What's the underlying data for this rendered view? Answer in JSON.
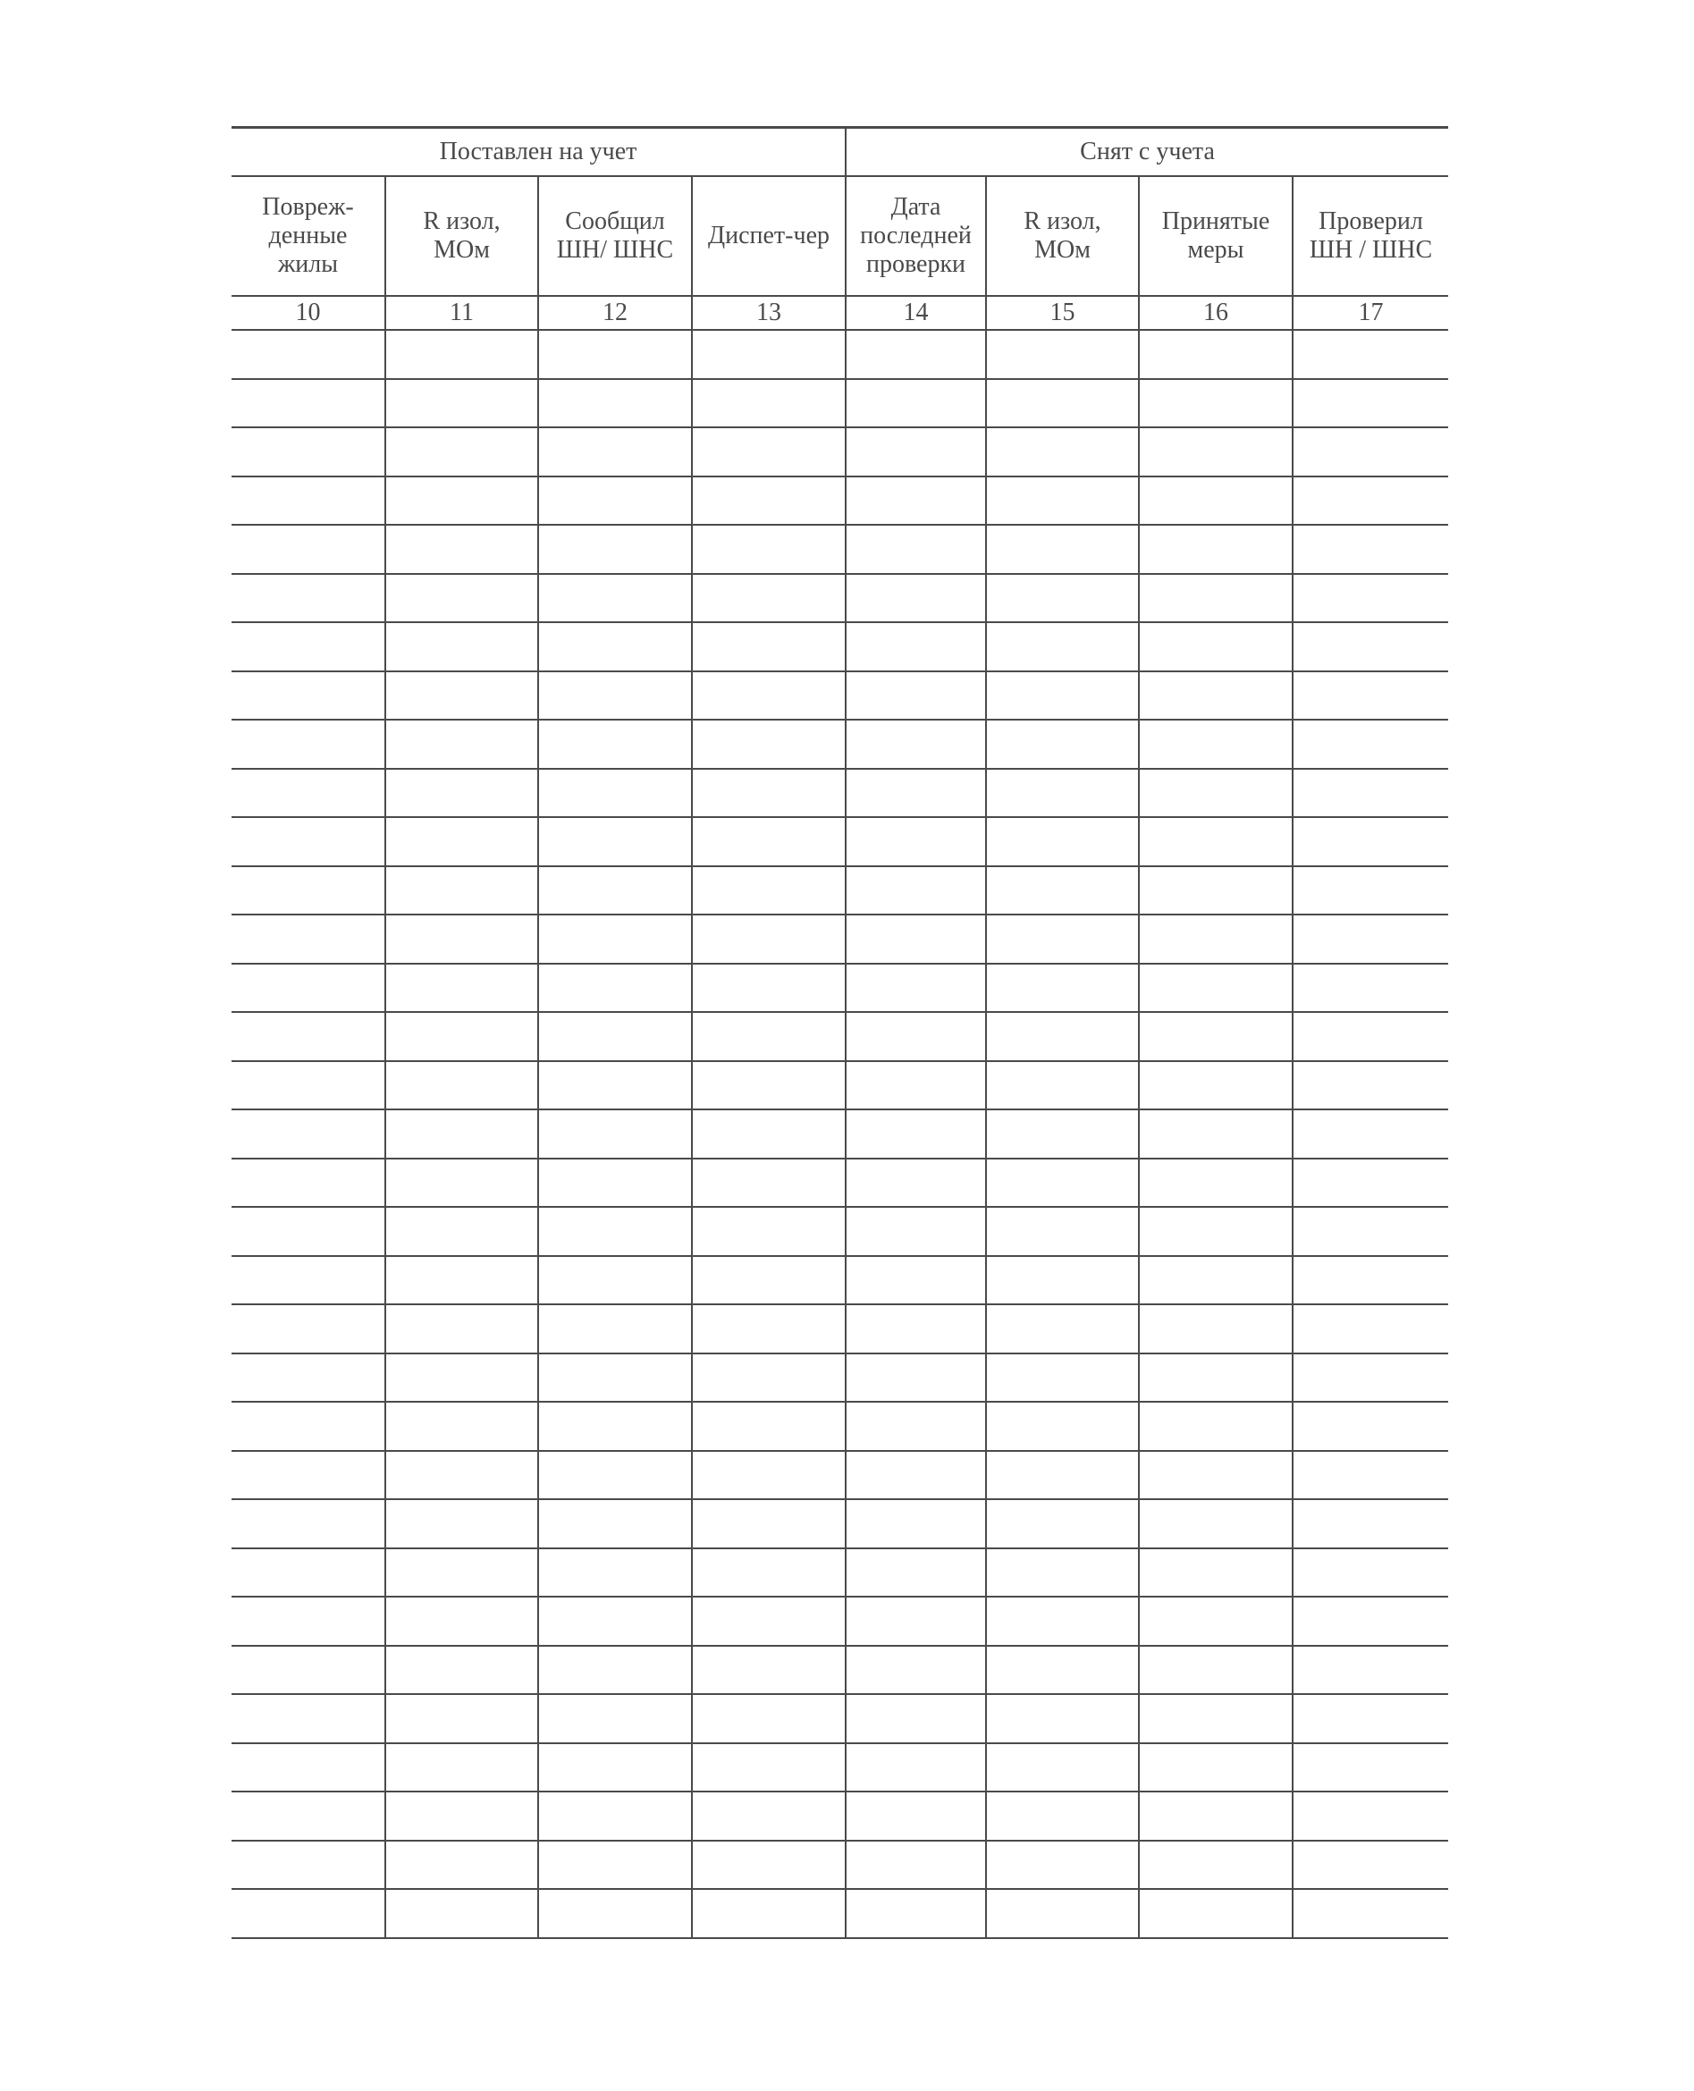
{
  "groups": {
    "registered": "Поставлен на учет",
    "removed": "Снят с учета"
  },
  "columns": [
    {
      "label": "Повреж-\nденные\nжилы",
      "number": "10"
    },
    {
      "label": "R изол,\nМОм",
      "number": "11"
    },
    {
      "label": "Сообщил\nШН/ ШНС",
      "number": "12"
    },
    {
      "label": "Диспет-чер",
      "number": "13"
    },
    {
      "label": "Дата\nпоследней\nпроверки",
      "number": "14"
    },
    {
      "label": "R изол,\nМОм",
      "number": "15"
    },
    {
      "label": "Принятые\nмеры",
      "number": "16"
    },
    {
      "label": "Проверил\nШН / ШНС",
      "number": "17"
    }
  ],
  "colors": {
    "lines": "#4a4a4a",
    "text": "#4a4a4a"
  }
}
